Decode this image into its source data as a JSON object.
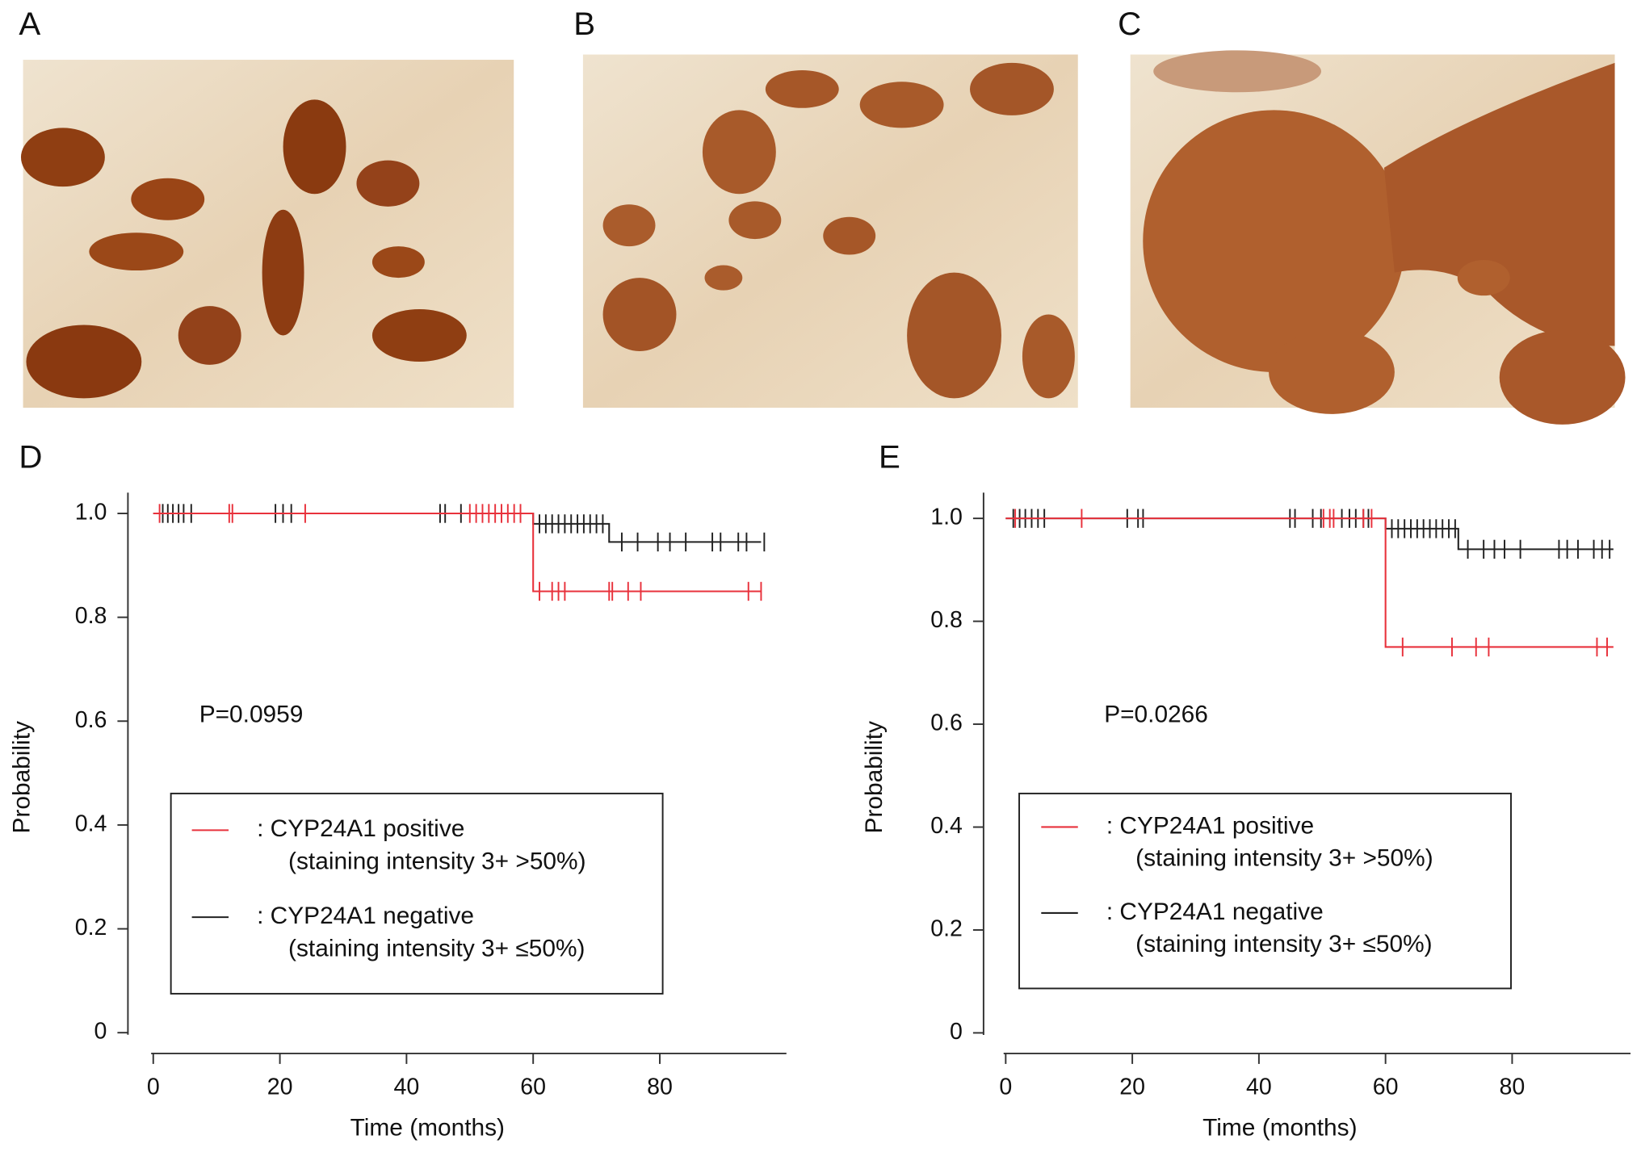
{
  "panels": [
    "A",
    "B",
    "C"
  ],
  "chart_data": [
    {
      "type": "survival",
      "panel": "D",
      "annotation": "P=0.0959",
      "xlabel": "Time (months)",
      "ylabel": "Probability",
      "xlim": [
        -4,
        100
      ],
      "ylim": [
        -0.04,
        1.04
      ],
      "xticks": [
        0,
        20,
        40,
        60,
        80
      ],
      "yticks": [
        0,
        0.2,
        0.4,
        0.6,
        0.8,
        {
          "value": 1,
          "label": "1.0"
        }
      ],
      "series": [
        {
          "name": ": CYP24A1 positive",
          "description": "(staining intensity 3+ >50%)",
          "color": "#e8323c",
          "x": [
            0,
            60,
            60,
            96
          ],
          "values": [
            1,
            1,
            0.85,
            0.85
          ],
          "censored_x": [
            1,
            12,
            12.5,
            24,
            50,
            51,
            52,
            53,
            54,
            55,
            56,
            57,
            58,
            61,
            63,
            64,
            65,
            72,
            72.5,
            75,
            77,
            94,
            96
          ],
          "censored_values": [
            1,
            1,
            1,
            1,
            1,
            1,
            1,
            1,
            1,
            1,
            1,
            1,
            1,
            0.85,
            0.85,
            0.85,
            0.85,
            0.85,
            0.85,
            0.85,
            0.85,
            0.85,
            0.85
          ]
        },
        {
          "name": ": CYP24A1 negative",
          "description": "(staining intensity 3+ ≤50%)",
          "color": "#222222",
          "x": [
            0,
            60,
            60,
            72,
            72,
            96
          ],
          "values": [
            1,
            1,
            0.98,
            0.98,
            0.945,
            0.945
          ],
          "censored_x": [
            1.5,
            2.3,
            3.1,
            4,
            4.8,
            6,
            19.3,
            20.5,
            21.8,
            45.3,
            46.1,
            48.6,
            61,
            62,
            63,
            64,
            65,
            66,
            67,
            68,
            69,
            70,
            71,
            74,
            76.5,
            79.7,
            81.6,
            84.1,
            88.3,
            89.6,
            92.4,
            93.7,
            96.5
          ],
          "censored_values": [
            1,
            1,
            1,
            1,
            1,
            1,
            1,
            1,
            1,
            1,
            1,
            1,
            0.98,
            0.98,
            0.98,
            0.98,
            0.98,
            0.98,
            0.98,
            0.98,
            0.98,
            0.98,
            0.98,
            0.945,
            0.945,
            0.945,
            0.945,
            0.945,
            0.945,
            0.945,
            0.945,
            0.945,
            0.945
          ]
        }
      ]
    },
    {
      "type": "survival",
      "panel": "E",
      "annotation": "P=0.0266",
      "xlabel": "Time (months)",
      "ylabel": "Probability",
      "xlim": [
        -3.5,
        98.7
      ],
      "ylim": [
        -0.04,
        1.05
      ],
      "xticks": [
        0,
        20,
        40,
        60,
        80
      ],
      "yticks": [
        0,
        0.2,
        0.4,
        0.6,
        0.8,
        {
          "value": 1,
          "label": "1.0"
        }
      ],
      "series": [
        {
          "name": ": CYP24A1 positive",
          "description": "(staining intensity 3+ >50%)",
          "color": "#e8323c",
          "x": [
            0,
            60,
            60,
            96
          ],
          "values": [
            1,
            1,
            0.75,
            0.75
          ],
          "censored_x": [
            1.5,
            12,
            50.2,
            51.2,
            51.8,
            56.5,
            57.8,
            62.7,
            70.5,
            74.3,
            76.3,
            93.4,
            95
          ],
          "censored_values": [
            1,
            1,
            1,
            1,
            1,
            1,
            1,
            0.75,
            0.75,
            0.75,
            0.75,
            0.75,
            0.75
          ]
        },
        {
          "name": ": CYP24A1 negative",
          "description": "(staining intensity 3+ ≤50%)",
          "color": "#222222",
          "x": [
            0,
            60,
            60,
            71.5,
            71.5,
            96
          ],
          "values": [
            1,
            1,
            0.98,
            0.98,
            0.94,
            0.94
          ],
          "censored_x": [
            1.2,
            2.2,
            3.1,
            4.1,
            5.1,
            6.1,
            19.2,
            20.9,
            21.7,
            44.9,
            45.7,
            48.5,
            49.8,
            53.1,
            54.3,
            55.3,
            56.5,
            57.3,
            61,
            62,
            63,
            64,
            65,
            66,
            67,
            68,
            69,
            70,
            71,
            73,
            75.5,
            77.2,
            78.8,
            81.3,
            87.4,
            88.7,
            90.4,
            92.9,
            94.2,
            95.4
          ],
          "censored_values": [
            1,
            1,
            1,
            1,
            1,
            1,
            1,
            1,
            1,
            1,
            1,
            1,
            1,
            1,
            1,
            1,
            1,
            1,
            0.98,
            0.98,
            0.98,
            0.98,
            0.98,
            0.98,
            0.98,
            0.98,
            0.98,
            0.98,
            0.98,
            0.94,
            0.94,
            0.94,
            0.94,
            0.94,
            0.94,
            0.94,
            0.94,
            0.94,
            0.94,
            0.94
          ]
        }
      ]
    }
  ]
}
